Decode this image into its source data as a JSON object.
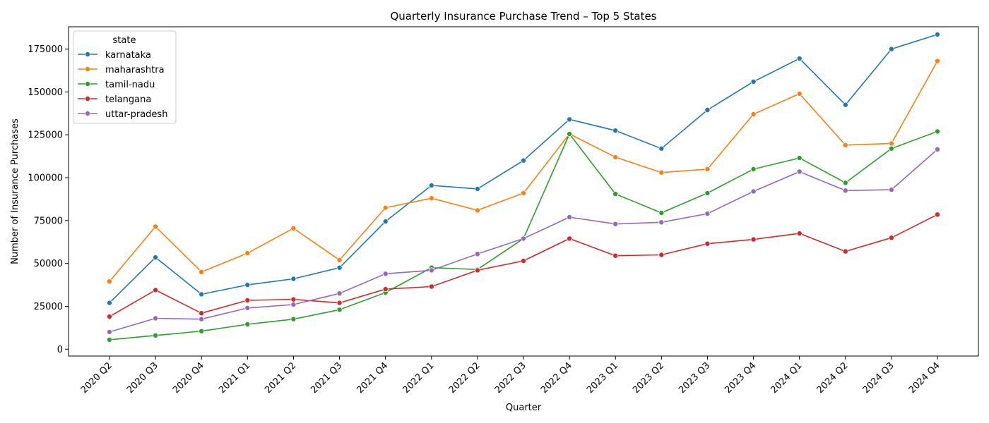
{
  "chart_data": {
    "type": "line",
    "title": "Quarterly Insurance Purchase Trend – Top 5 States",
    "xlabel": "Quarter",
    "ylabel": "Number of Insurance Purchases",
    "categories": [
      "2020 Q2",
      "2020 Q3",
      "2020 Q4",
      "2021 Q1",
      "2021 Q2",
      "2021 Q3",
      "2021 Q4",
      "2022 Q1",
      "2022 Q2",
      "2022 Q3",
      "2022 Q4",
      "2023 Q1",
      "2023 Q2",
      "2023 Q3",
      "2023 Q4",
      "2024 Q1",
      "2024 Q2",
      "2024 Q3",
      "2024 Q4"
    ],
    "yticks": [
      0,
      25000,
      50000,
      75000,
      100000,
      125000,
      150000,
      175000
    ],
    "ylim": [
      -4000,
      188000
    ],
    "legend_title": "state",
    "legend_position": "upper-left",
    "grid": false,
    "series": [
      {
        "name": "karnataka",
        "color": "#1f77b4",
        "values": [
          27000,
          53500,
          32000,
          37500,
          41000,
          47500,
          74500,
          95500,
          93500,
          110000,
          134000,
          127500,
          117000,
          139500,
          156000,
          169500,
          142500,
          175000,
          183500
        ]
      },
      {
        "name": "maharashtra",
        "color": "#ff7f0e",
        "values": [
          39500,
          71500,
          45000,
          56000,
          70500,
          52000,
          82500,
          88000,
          81000,
          91000,
          125500,
          112000,
          103000,
          105000,
          137000,
          149000,
          119000,
          120000,
          168000
        ]
      },
      {
        "name": "tamil-nadu",
        "color": "#2ca02c",
        "values": [
          5500,
          8000,
          10500,
          14500,
          17500,
          23000,
          33000,
          47500,
          46500,
          64500,
          125500,
          90500,
          79500,
          91000,
          105000,
          111500,
          97000,
          117000,
          127000
        ]
      },
      {
        "name": "telangana",
        "color": "#d62728",
        "values": [
          19000,
          34500,
          21000,
          28500,
          29000,
          27000,
          35000,
          36500,
          46000,
          51500,
          64500,
          54500,
          55000,
          61500,
          64000,
          67500,
          57000,
          65000,
          78500
        ]
      },
      {
        "name": "uttar-pradesh",
        "color": "#9467bd",
        "values": [
          10000,
          18000,
          17500,
          24000,
          26000,
          32500,
          44000,
          46000,
          55500,
          64500,
          77000,
          73000,
          74000,
          79000,
          92000,
          103500,
          92500,
          93000,
          116500
        ]
      }
    ]
  }
}
